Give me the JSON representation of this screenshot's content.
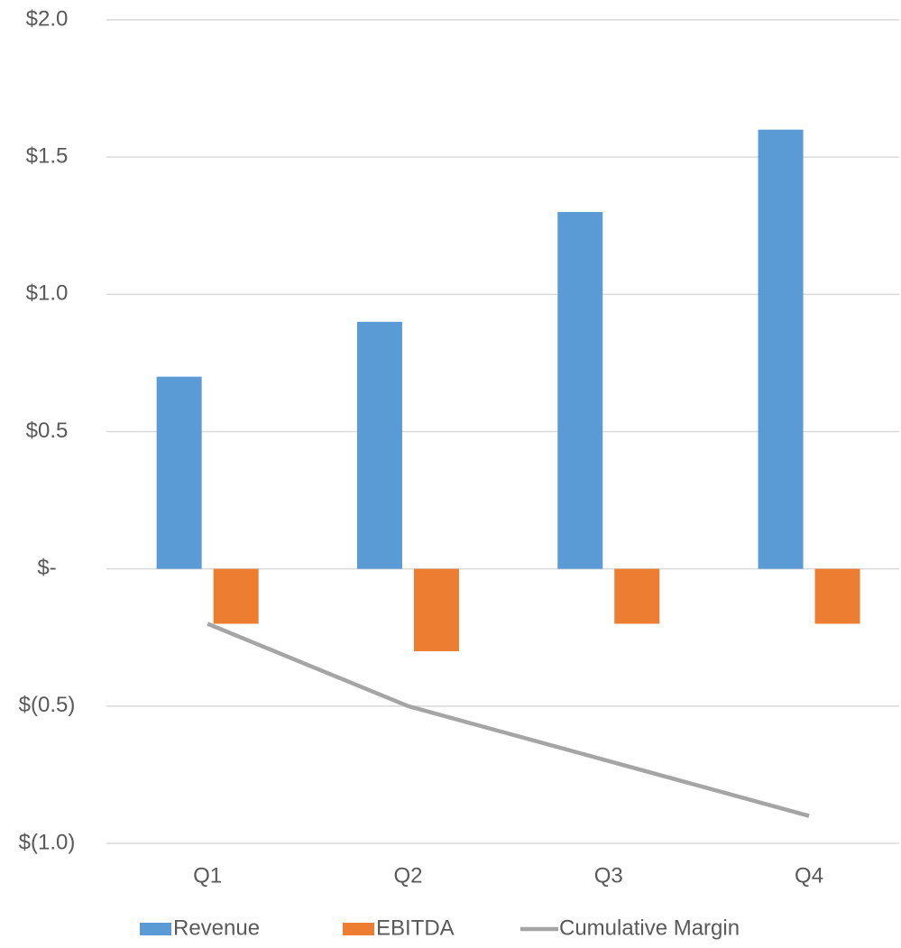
{
  "chart_data": {
    "type": "bar",
    "categories": [
      "Q1",
      "Q2",
      "Q3",
      "Q4"
    ],
    "series": [
      {
        "name": "Revenue",
        "color": "#5b9bd5",
        "values": [
          0.7,
          0.9,
          1.3,
          1.6
        ]
      },
      {
        "name": "EBITDA",
        "color": "#ed7d31",
        "values": [
          -0.2,
          -0.3,
          -0.2,
          -0.2
        ]
      },
      {
        "name": "Cumulative Margin",
        "color": "#a5a5a5",
        "type": "line",
        "values": [
          -0.2,
          -0.5,
          -0.7,
          -0.9
        ]
      }
    ],
    "ylim": [
      -1.0,
      2.0
    ],
    "yticks": [
      {
        "value": 2.0,
        "label": "$2.0"
      },
      {
        "value": 1.5,
        "label": "$1.5"
      },
      {
        "value": 1.0,
        "label": "$1.0"
      },
      {
        "value": 0.5,
        "label": "$0.5"
      },
      {
        "value": 0,
        "label": "$-"
      },
      {
        "value": -0.5,
        "label": "$(0.5)"
      },
      {
        "value": -1.0,
        "label": "$(1.0)"
      }
    ],
    "grid": true,
    "legend": "bottom"
  }
}
